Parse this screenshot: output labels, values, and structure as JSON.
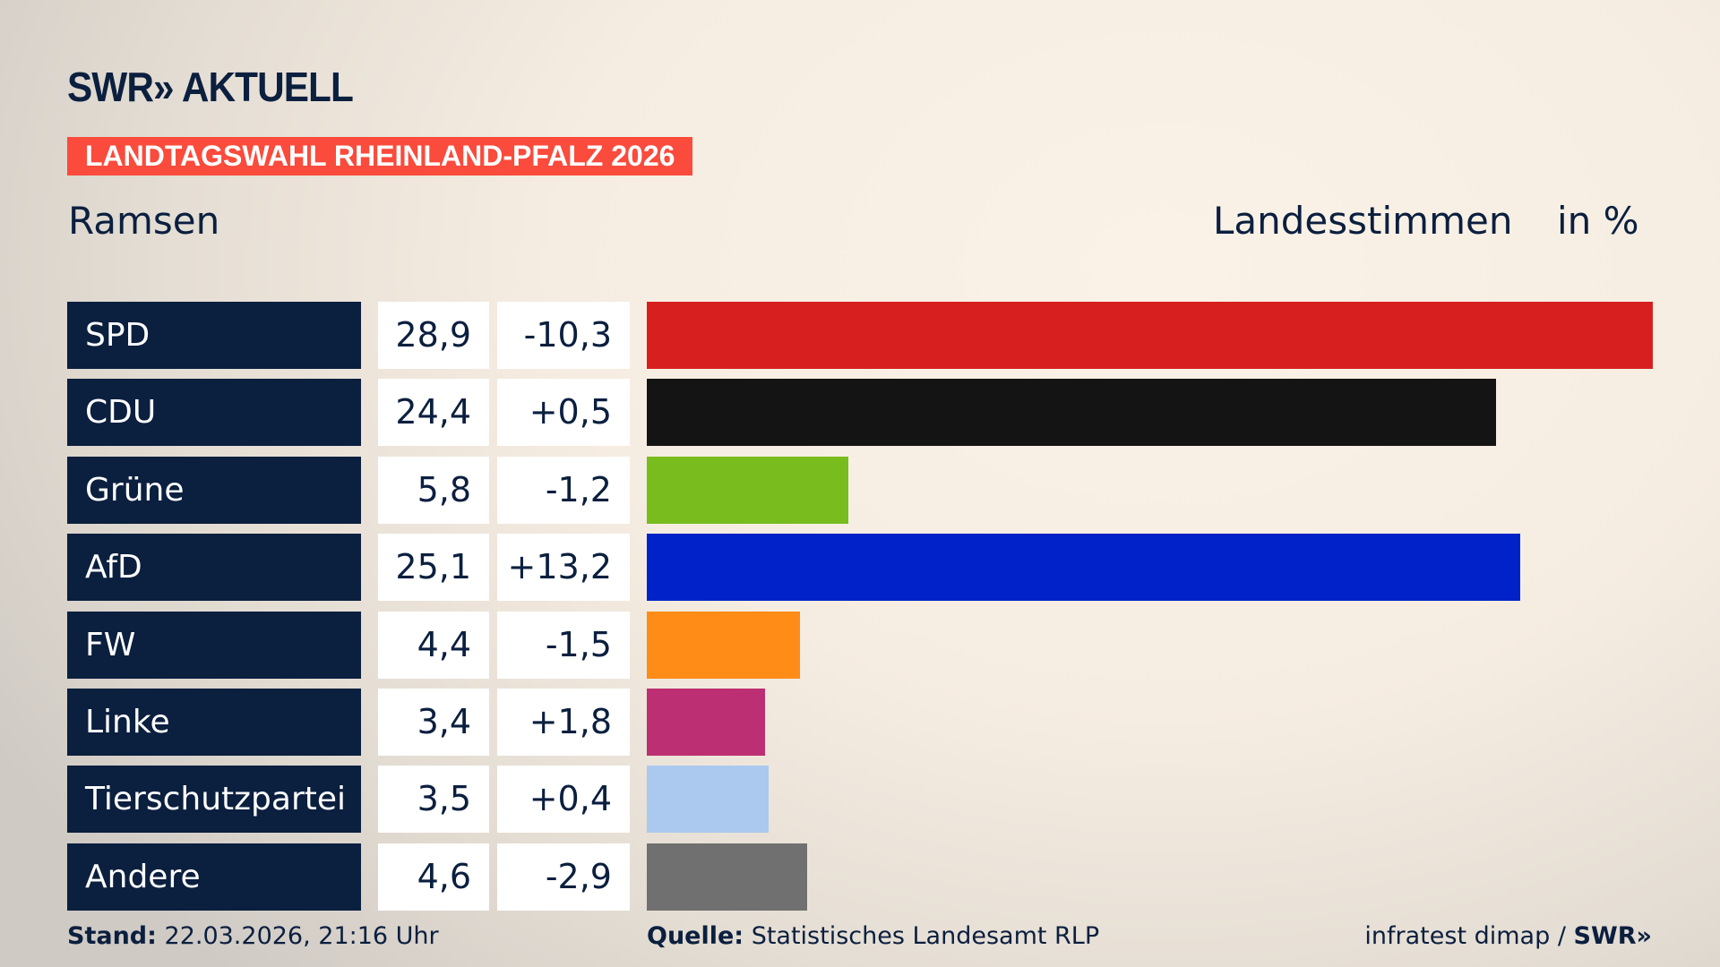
{
  "logo": "SWR» AKTUELL",
  "banner": "LANDTAGSWAHL RHEINLAND-PFALZ 2026",
  "place": "Ramsen",
  "header": {
    "measure": "Landesstimmen",
    "unit": "in %"
  },
  "chart_data": {
    "type": "bar",
    "orientation": "horizontal",
    "categories": [
      "SPD",
      "CDU",
      "Grüne",
      "AfD",
      "FW",
      "Linke",
      "Tierschutzpartei",
      "Andere"
    ],
    "values": [
      "28,9",
      "24,4",
      "5,8",
      "25,1",
      "4,4",
      "3,4",
      "3,5",
      "4,6"
    ],
    "diffs": [
      "-10,3",
      "+0,5",
      "-1,2",
      "+13,2",
      "-1,5",
      "+1,8",
      "+0,4",
      "-2,9"
    ],
    "numeric_values": [
      28.9,
      24.4,
      5.8,
      25.1,
      4.4,
      3.4,
      3.5,
      4.6
    ],
    "colors": [
      "#d81f1f",
      "#141414",
      "#78bc1e",
      "#0022c8",
      "#ff8c17",
      "#bc2f72",
      "#abc8ef",
      "#707070"
    ]
  },
  "footer": {
    "stand_label": "Stand:",
    "stand": "22.03.2026, 21:16 Uhr",
    "quelle_label": "Quelle:",
    "quelle": "Statistisches Landesamt RLP",
    "credit": "infratest dimap /",
    "credit_logo": "SWR»"
  }
}
